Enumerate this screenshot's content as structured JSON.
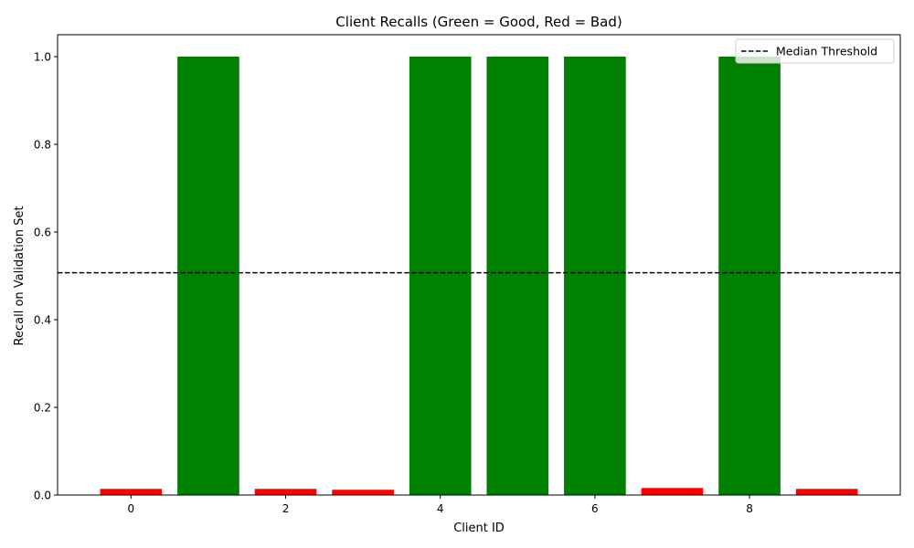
{
  "chart_data": {
    "type": "bar",
    "title": "Client Recalls (Green = Good, Red = Bad)",
    "xlabel": "Client ID",
    "ylabel": "Recall on Validation Set",
    "categories": [
      0,
      1,
      2,
      3,
      4,
      5,
      6,
      7,
      8,
      9
    ],
    "values": [
      0.014,
      1.0,
      0.014,
      0.012,
      1.0,
      1.0,
      1.0,
      0.016,
      1.0,
      0.014
    ],
    "bar_status": [
      "bad",
      "good",
      "bad",
      "bad",
      "good",
      "good",
      "good",
      "bad",
      "good",
      "bad"
    ],
    "colors": {
      "good": "#008000",
      "bad": "#ff0000",
      "threshold": "#000000"
    },
    "xlim": [
      -0.95,
      9.95
    ],
    "ylim": [
      0,
      1.05
    ],
    "xticks": [
      0,
      2,
      4,
      6,
      8
    ],
    "yticks": [
      0.0,
      0.2,
      0.4,
      0.6,
      0.8,
      1.0
    ],
    "threshold": {
      "name": "Median Threshold",
      "value": 0.507,
      "style": "dashed"
    },
    "legend": {
      "position": "top-right",
      "entries": [
        "Median Threshold"
      ]
    },
    "grid": false
  }
}
